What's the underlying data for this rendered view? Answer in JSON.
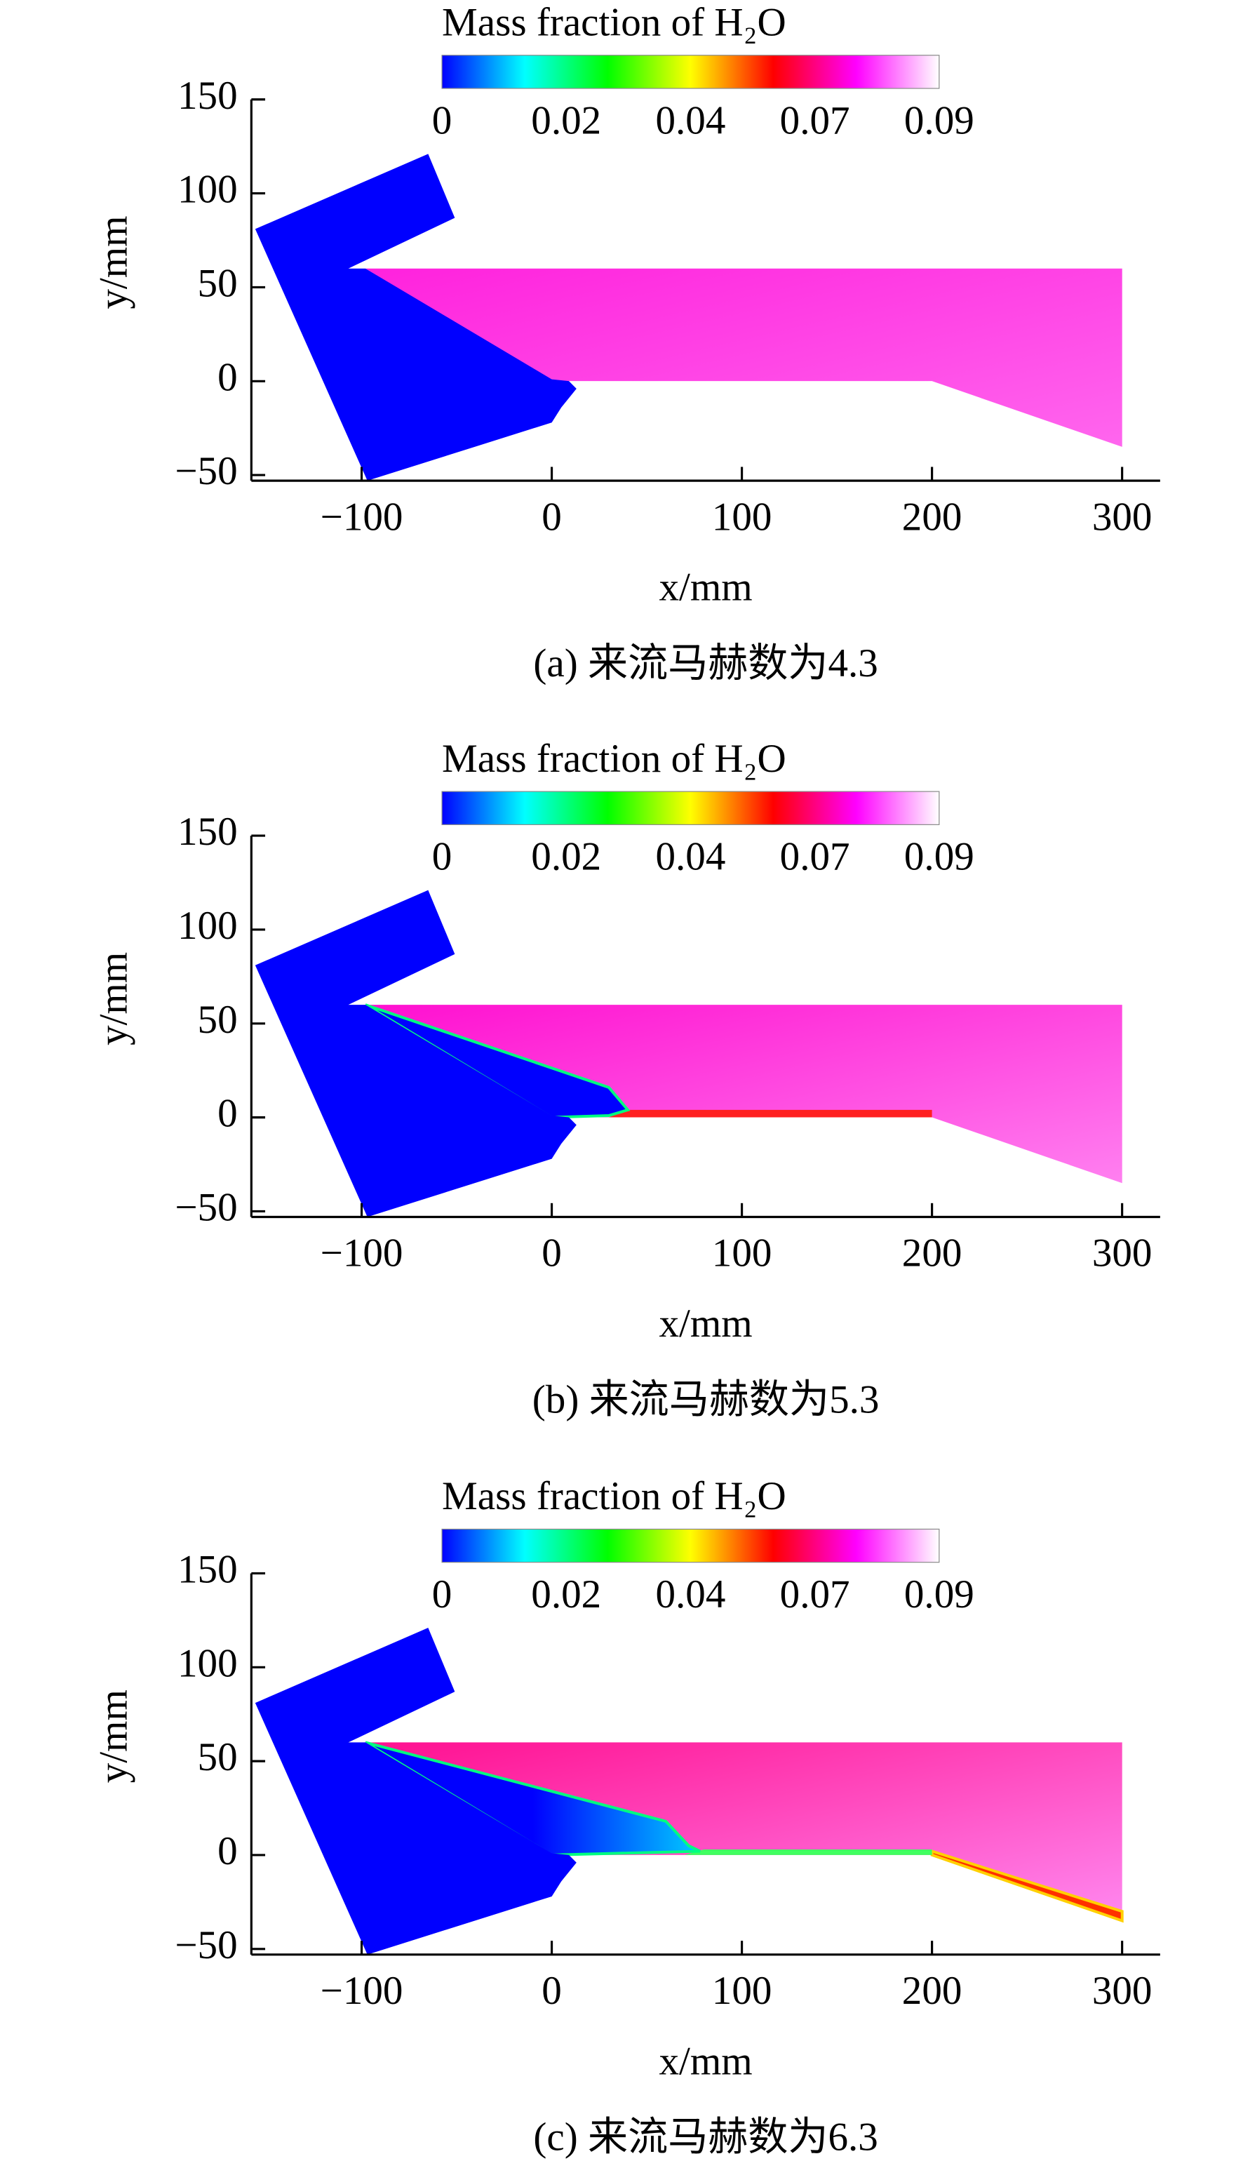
{
  "chart_data": [
    {
      "type": "contour",
      "caption": "(a) 来流马赫数为4.3",
      "xlabel": "x/mm",
      "ylabel": "y/mm",
      "xlim": [
        -158,
        320
      ],
      "ylim": [
        -53,
        150
      ],
      "xticks": [
        {
          "value": -100,
          "label": "−100"
        },
        0,
        100,
        200,
        300
      ],
      "yticks": [
        {
          "value": -50,
          "label": "−50"
        },
        0,
        50,
        100,
        150
      ],
      "colorbar": {
        "title": "Mass fraction of H₂O",
        "ticks": [
          0,
          0.02,
          0.04,
          0.07,
          0.09
        ],
        "colors": [
          "#0000ff",
          "#00ffff",
          "#00ff00",
          "#ffff00",
          "#ff0000",
          "#ff00ff",
          "#ffffff"
        ]
      }
    },
    {
      "type": "contour",
      "caption": "(b) 来流马赫数为5.3",
      "xlabel": "x/mm",
      "ylabel": "y/mm",
      "xlim": [
        -158,
        320
      ],
      "ylim": [
        -53,
        150
      ],
      "xticks": [
        {
          "value": -100,
          "label": "−100"
        },
        0,
        100,
        200,
        300
      ],
      "yticks": [
        {
          "value": -50,
          "label": "−50"
        },
        0,
        50,
        100,
        150
      ],
      "colorbar": {
        "title": "Mass fraction of H₂O",
        "ticks": [
          0,
          0.02,
          0.04,
          0.07,
          0.09
        ],
        "colors": [
          "#0000ff",
          "#00ffff",
          "#00ff00",
          "#ffff00",
          "#ff0000",
          "#ff00ff",
          "#ffffff"
        ]
      }
    },
    {
      "type": "contour",
      "caption": "(c) 来流马赫数为6.3",
      "xlabel": "x/mm",
      "ylabel": "y/mm",
      "xlim": [
        -158,
        320
      ],
      "ylim": [
        -53,
        150
      ],
      "xticks": [
        {
          "value": -100,
          "label": "−100"
        },
        0,
        100,
        200,
        300
      ],
      "yticks": [
        {
          "value": -50,
          "label": "−50"
        },
        0,
        50,
        100,
        150
      ],
      "colorbar": {
        "title": "Mass fraction of H₂O",
        "ticks": [
          0,
          0.02,
          0.04,
          0.07,
          0.09
        ],
        "colors": [
          "#0000ff",
          "#00ffff",
          "#00ff00",
          "#ffff00",
          "#ff0000",
          "#ff00ff",
          "#ffffff"
        ]
      }
    }
  ]
}
